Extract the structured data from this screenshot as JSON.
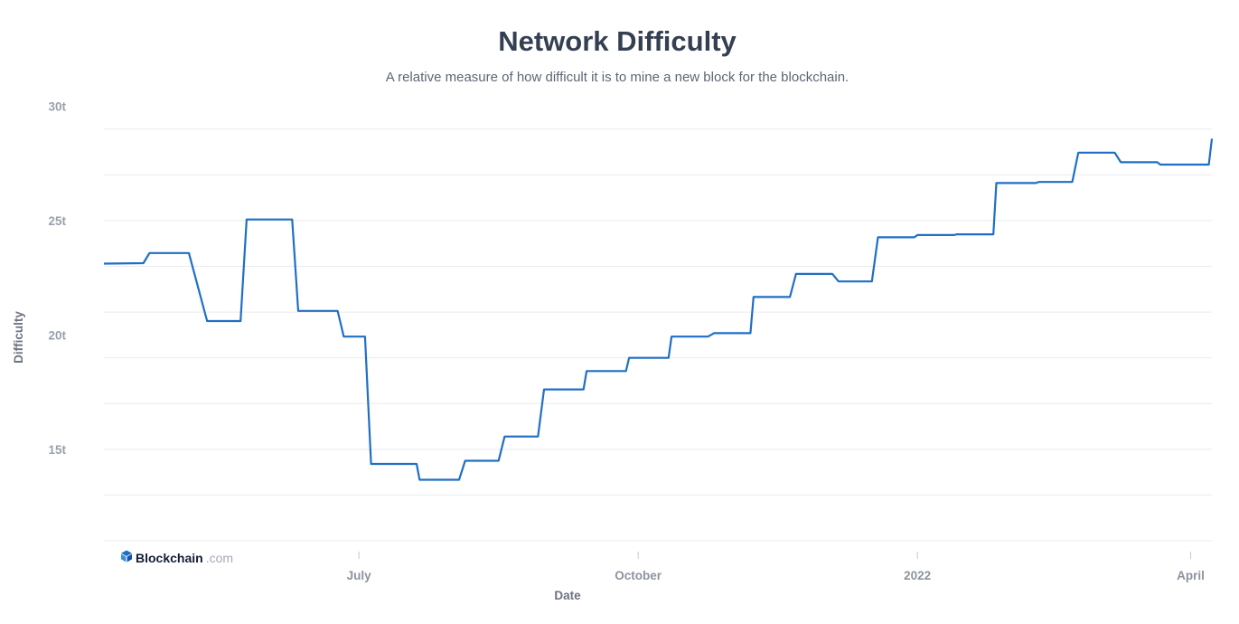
{
  "header": {
    "title": "Network Difficulty",
    "subtitle": "A relative measure of how difficult it is to mine a new block for the blockchain."
  },
  "brand": {
    "name": "Blockchain",
    "suffix": ".com",
    "icon": "blockchain-logo-icon"
  },
  "colors": {
    "line": "#1f6fc5",
    "grid": "#e9ebef",
    "text": "#343f52"
  },
  "chart_data": {
    "type": "line",
    "title": "Network Difficulty",
    "subtitle": "A relative measure of how difficult it is to mine a new block for the blockchain.",
    "xlabel": "Date",
    "ylabel": "Difficulty",
    "yticks": [
      {
        "value": 15,
        "label": "15t"
      },
      {
        "value": 20,
        "label": "20t"
      },
      {
        "value": 25,
        "label": "25t"
      },
      {
        "value": 30,
        "label": "30t"
      }
    ],
    "ylim": [
      11,
      29.9
    ],
    "xlim": [
      "2021-04-08",
      "2022-04-08"
    ],
    "xticks": [
      {
        "value": "2021-07-01",
        "label": "July"
      },
      {
        "value": "2021-10-01",
        "label": "October"
      },
      {
        "value": "2022-01-01",
        "label": "2022"
      },
      {
        "value": "2022-04-01",
        "label": "April"
      }
    ],
    "grid": true,
    "series": [
      {
        "values": [
          [
            "2021-04-08",
            23.12
          ],
          [
            "2021-04-21",
            23.14
          ],
          [
            "2021-04-23",
            23.58
          ],
          [
            "2021-05-06",
            23.58
          ],
          [
            "2021-05-12",
            20.61
          ],
          [
            "2021-05-23",
            20.61
          ],
          [
            "2021-05-25",
            25.05
          ],
          [
            "2021-06-09",
            25.05
          ],
          [
            "2021-06-11",
            21.05
          ],
          [
            "2021-06-24",
            21.05
          ],
          [
            "2021-06-26",
            19.93
          ],
          [
            "2021-07-03",
            19.93
          ],
          [
            "2021-07-05",
            14.36
          ],
          [
            "2021-07-20",
            14.36
          ],
          [
            "2021-07-21",
            13.67
          ],
          [
            "2021-08-03",
            13.67
          ],
          [
            "2021-08-05",
            14.5
          ],
          [
            "2021-08-16",
            14.5
          ],
          [
            "2021-08-18",
            15.56
          ],
          [
            "2021-08-29",
            15.56
          ],
          [
            "2021-08-31",
            17.62
          ],
          [
            "2021-09-13",
            17.62
          ],
          [
            "2021-09-14",
            18.42
          ],
          [
            "2021-09-27",
            18.42
          ],
          [
            "2021-09-28",
            19.0
          ],
          [
            "2021-10-11",
            19.0
          ],
          [
            "2021-10-12",
            19.93
          ],
          [
            "2021-10-24",
            19.93
          ],
          [
            "2021-10-26",
            20.08
          ],
          [
            "2021-11-07",
            20.08
          ],
          [
            "2021-11-08",
            21.66
          ],
          [
            "2021-11-20",
            21.66
          ],
          [
            "2021-11-22",
            22.67
          ],
          [
            "2021-12-04",
            22.67
          ],
          [
            "2021-12-06",
            22.34
          ],
          [
            "2021-12-17",
            22.34
          ],
          [
            "2021-12-19",
            24.27
          ],
          [
            "2021-12-31",
            24.27
          ],
          [
            "2022-01-01",
            24.37
          ],
          [
            "2022-01-13",
            24.37
          ],
          [
            "2022-01-14",
            24.4
          ],
          [
            "2022-01-26",
            24.4
          ],
          [
            "2022-01-27",
            26.64
          ],
          [
            "2022-02-09",
            26.64
          ],
          [
            "2022-02-10",
            26.69
          ],
          [
            "2022-02-21",
            26.69
          ],
          [
            "2022-02-23",
            27.97
          ],
          [
            "2022-03-07",
            27.97
          ],
          [
            "2022-03-09",
            27.55
          ],
          [
            "2022-03-21",
            27.55
          ],
          [
            "2022-03-22",
            27.45
          ],
          [
            "2022-04-07",
            27.45
          ],
          [
            "2022-04-08",
            28.58
          ]
        ]
      }
    ]
  }
}
